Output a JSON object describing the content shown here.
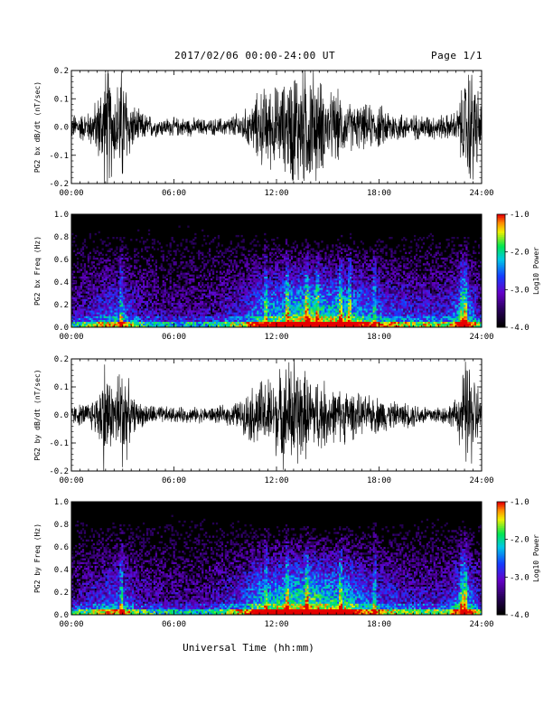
{
  "header": {
    "title": "2017/02/06  00:00-24:00 UT",
    "page": "Page 1/1"
  },
  "xaxis_label": "Universal Time (hh:mm)",
  "chart_data": [
    {
      "type": "line",
      "ylabel": "PG2 bx dB/dt (nT/sec)",
      "xlim": [
        0,
        24
      ],
      "ylim": [
        -0.2,
        0.2
      ],
      "xticks": [
        "00:00",
        "06:00",
        "12:00",
        "18:00",
        "24:00"
      ],
      "yticks": [
        "0.2",
        "0.1",
        "0.0",
        "-0.1",
        "-0.2"
      ],
      "color": "#000000",
      "series": [
        {
          "x": [
            0,
            1,
            1.5,
            2,
            2.2,
            2.5,
            3,
            3.5,
            4,
            5,
            6,
            7,
            8,
            9,
            10,
            10.5,
            11,
            11.5,
            12,
            12.5,
            13,
            13.5,
            14,
            14.5,
            15,
            15.5,
            16,
            17,
            18,
            19,
            20,
            21,
            22,
            22.5,
            23,
            23.2,
            23.5,
            24
          ],
          "amplitude": [
            0.04,
            0.05,
            0.09,
            0.2,
            0.2,
            0.12,
            0.2,
            0.08,
            0.05,
            0.03,
            0.03,
            0.03,
            0.025,
            0.03,
            0.05,
            0.07,
            0.12,
            0.13,
            0.13,
            0.14,
            0.2,
            0.2,
            0.2,
            0.16,
            0.1,
            0.12,
            0.08,
            0.07,
            0.07,
            0.05,
            0.04,
            0.04,
            0.04,
            0.05,
            0.15,
            0.2,
            0.2,
            0.06
          ]
        }
      ]
    },
    {
      "type": "heatmap",
      "ylabel": "PG2 bx Freq (Hz)",
      "xlim": [
        0,
        24
      ],
      "ylim": [
        0,
        1.0
      ],
      "xticks": [
        "00:00",
        "06:00",
        "12:00",
        "18:00",
        "24:00"
      ],
      "yticks": [
        "1.0",
        "0.8",
        "0.6",
        "0.4",
        "0.2",
        "0.0"
      ],
      "colorbar": {
        "label": "Log10 Power",
        "range": [
          -4.0,
          -1.0
        ],
        "ticks": [
          "-1.0",
          "-2.0",
          "-3.0",
          "-4.0"
        ]
      },
      "activity_x": [
        0,
        2,
        3,
        4,
        6,
        8,
        10,
        11,
        12,
        13,
        14,
        15,
        16,
        17,
        18,
        20,
        22,
        23,
        24
      ],
      "activity_level": [
        0.25,
        0.45,
        0.5,
        0.3,
        0.25,
        0.25,
        0.4,
        0.6,
        0.65,
        0.75,
        0.8,
        0.7,
        0.72,
        0.6,
        0.5,
        0.4,
        0.4,
        0.7,
        0.3
      ],
      "bright_columns_hours": [
        2.9,
        11.4,
        12.6,
        13.8,
        14.4,
        15.8,
        16.3,
        17.7,
        22.9,
        23.1
      ]
    },
    {
      "type": "line",
      "ylabel": "PG2 by dB/dt (nT/sec)",
      "xlim": [
        0,
        24
      ],
      "ylim": [
        -0.2,
        0.2
      ],
      "xticks": [
        "00:00",
        "06:00",
        "12:00",
        "18:00",
        "24:00"
      ],
      "yticks": [
        "0.2",
        "0.1",
        "0.0",
        "-0.1",
        "-0.2"
      ],
      "color": "#000000",
      "series": [
        {
          "x": [
            0,
            1,
            1.5,
            2,
            2.2,
            2.5,
            3,
            3.5,
            4,
            5,
            6,
            7,
            8,
            9,
            10,
            10.5,
            11,
            11.5,
            12,
            12.5,
            13,
            13.5,
            14,
            14.5,
            15,
            15.5,
            16,
            17,
            18,
            19,
            20,
            21,
            22,
            22.5,
            23,
            23.2,
            23.5,
            24
          ],
          "amplitude": [
            0.03,
            0.04,
            0.07,
            0.2,
            0.12,
            0.1,
            0.2,
            0.06,
            0.04,
            0.03,
            0.025,
            0.025,
            0.025,
            0.03,
            0.05,
            0.09,
            0.11,
            0.12,
            0.13,
            0.16,
            0.2,
            0.15,
            0.12,
            0.12,
            0.1,
            0.08,
            0.09,
            0.06,
            0.06,
            0.04,
            0.04,
            0.03,
            0.03,
            0.05,
            0.16,
            0.2,
            0.15,
            0.06
          ]
        }
      ]
    },
    {
      "type": "heatmap",
      "ylabel": "PG2 by Freq (Hz)",
      "xlim": [
        0,
        24
      ],
      "ylim": [
        0,
        1.0
      ],
      "xticks": [
        "00:00",
        "06:00",
        "12:00",
        "18:00",
        "24:00"
      ],
      "yticks": [
        "1.0",
        "0.8",
        "0.6",
        "0.4",
        "0.2",
        "0.0"
      ],
      "colorbar": {
        "label": "Log10 Power",
        "range": [
          -4.0,
          -1.0
        ],
        "ticks": [
          "-1.0",
          "-2.0",
          "-3.0",
          "-4.0"
        ]
      },
      "activity_x": [
        0,
        2,
        3,
        4,
        6,
        8,
        10,
        11,
        12,
        13,
        14,
        15,
        16,
        17,
        18,
        20,
        22,
        23,
        24
      ],
      "activity_level": [
        0.25,
        0.45,
        0.5,
        0.3,
        0.25,
        0.25,
        0.45,
        0.65,
        0.7,
        0.75,
        0.8,
        0.7,
        0.72,
        0.55,
        0.45,
        0.35,
        0.35,
        0.7,
        0.3
      ],
      "bright_columns_hours": [
        2.9,
        11.4,
        12.6,
        13.8,
        15.8,
        17.7,
        22.9,
        23.1
      ]
    }
  ]
}
